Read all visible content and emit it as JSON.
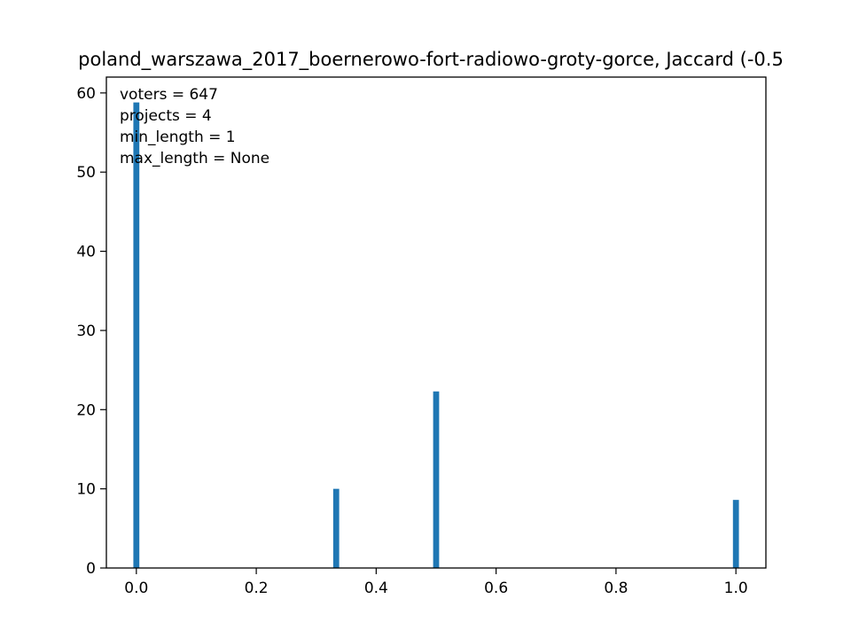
{
  "chart_data": {
    "type": "bar",
    "title": "poland_warszawa_2017_boernerowo-fort-radiowo-groty-gorce, Jaccard (-0.5",
    "xlabel": "",
    "ylabel": "",
    "xlim": [
      -0.05,
      1.05
    ],
    "ylim": [
      0,
      62
    ],
    "xticks": [
      "0.0",
      "0.2",
      "0.4",
      "0.6",
      "0.8",
      "1.0"
    ],
    "yticks": [
      "0",
      "10",
      "20",
      "30",
      "40",
      "50",
      "60"
    ],
    "bar_width": 0.01,
    "color": "#1f77b4",
    "grid": false,
    "bars": [
      {
        "x": 0.0,
        "value": 58.8
      },
      {
        "x": 0.3333,
        "value": 10.0
      },
      {
        "x": 0.5,
        "value": 22.3
      },
      {
        "x": 1.0,
        "value": 8.6
      }
    ],
    "annotations": [
      "voters = 647",
      "projects = 4",
      "min_length = 1",
      "max_length = None"
    ]
  }
}
